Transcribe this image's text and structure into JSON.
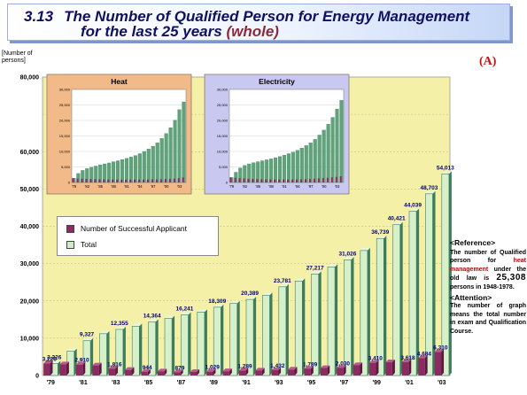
{
  "header": {
    "number": "3.13",
    "title_line1": "The Number of Qualified Person for Energy Management",
    "title_line2_prefix": "for the last 25 years",
    "title_line2_highlight": "(whole)"
  },
  "corner_label": "(A)",
  "y_unit_line1": "[Number of",
  "y_unit_line2": "persons]",
  "legend": {
    "successful": "Number of Successful Applicant",
    "total": "Total"
  },
  "colors": {
    "plot_bg": "#f4f0a8",
    "total_bar": "#5fa37a",
    "total_bar_light": "#d6f0cc",
    "successful_bar": "#8c2a62",
    "heat_inset_bg": "#f2ba88",
    "elec_inset_bg": "#c9c8f0"
  },
  "reference": {
    "head": "<Reference>",
    "text_a": "The number of Qualified person for",
    "highlight": "heat management",
    "text_b": "under the old law is",
    "big_number": "25,308",
    "text_c": "persons in 1948-1978."
  },
  "attention": {
    "head": "<Attention>",
    "text": "The number of graph means the total number in exam and Qualification Course."
  },
  "chart_data": {
    "type": "bar",
    "ylim": [
      0,
      80000
    ],
    "yticks": [
      0,
      10000,
      20000,
      30000,
      40000,
      50000,
      60000,
      70000,
      80000
    ],
    "ytick_labels": [
      "0",
      "10,000",
      "20,000",
      "30,000",
      "40,000",
      "50,000",
      "60,000",
      "",
      "80,000"
    ],
    "categories": [
      "'79",
      "'80",
      "'81",
      "'82",
      "'83",
      "'84",
      "'85",
      "'86",
      "'87",
      "'88",
      "'89",
      "'90",
      "'91",
      "'92",
      "'93",
      "'94",
      "'95",
      "'96",
      "'97",
      "'98",
      "'99",
      "'00",
      "'01",
      "'02",
      "'03"
    ],
    "x_tick_labels": [
      "'79",
      "",
      "'81",
      "",
      "'83",
      "",
      "'85",
      "",
      "'87",
      "",
      "'89",
      "",
      "'91",
      "",
      "'93",
      "",
      "'95",
      "",
      "'97",
      "",
      "'99",
      "",
      "'01",
      "",
      "'03"
    ],
    "series": [
      {
        "name": "Number of Successful Applicant",
        "values": [
          3226,
          3000,
          2910,
          2700,
          1816,
          1500,
          944,
          1100,
          879,
          950,
          1029,
          1150,
          1289,
          1350,
          1432,
          1600,
          1789,
          2000,
          2030,
          2800,
          3410,
          3550,
          3618,
          4684,
          6310
        ],
        "labels": [
          "3,226",
          "",
          "2,910",
          "",
          "1,816",
          "",
          "944",
          "",
          "879",
          "",
          "1,029",
          "",
          "1,289",
          "",
          "1,432",
          "",
          "1,789",
          "",
          "2,030",
          "",
          "3,410",
          "",
          "3,618",
          "4,684",
          "6,310"
        ]
      },
      {
        "name": "Total",
        "values": [
          3226,
          6500,
          9327,
          11200,
          12355,
          13200,
          14364,
          15300,
          16241,
          17000,
          18309,
          19300,
          20389,
          21500,
          23781,
          25300,
          27217,
          29100,
          31026,
          33500,
          36739,
          40421,
          44039,
          48703,
          54013
        ],
        "labels": [
          "3,226",
          "",
          "9,327",
          "",
          "12,355",
          "",
          "14,364",
          "",
          "16,241",
          "",
          "18,309",
          "",
          "20,389",
          "",
          "23,781",
          "",
          "27,217",
          "",
          "31,026",
          "",
          "36,739",
          "40,421",
          "44,039",
          "48,703",
          "54,013"
        ]
      }
    ],
    "insets": [
      {
        "title": "Heat",
        "ylim": [
          0,
          30000
        ],
        "yticks": [
          "30,000",
          "25,000",
          "20,000",
          "15,000",
          "10,000",
          "5,000",
          "0"
        ],
        "xlabels": [
          "'79",
          "'82",
          "'85",
          "'88",
          "'91",
          "'94",
          "'97",
          "'00",
          "'03"
        ],
        "total": [
          1400,
          2900,
          3900,
          4500,
          4900,
          5300,
          5700,
          6000,
          6300,
          6700,
          7000,
          7400,
          7800,
          8200,
          8700,
          9300,
          10000,
          10800,
          11700,
          12800,
          14200,
          15800,
          17700,
          20100,
          23500,
          26000
        ],
        "successful": [
          1300,
          1250,
          1200,
          1150,
          1100,
          1050,
          1000,
          980,
          960,
          950,
          940,
          930,
          920,
          920,
          920,
          930,
          940,
          960,
          980,
          1000,
          1050,
          1100,
          1150,
          1250,
          1400,
          1600
        ]
      },
      {
        "title": "Electricity",
        "ylim": [
          0,
          30000
        ],
        "yticks": [
          "30,000",
          "25,000",
          "20,000",
          "15,000",
          "10,000",
          "5,000",
          "0"
        ],
        "xlabels": [
          "'79",
          "'82",
          "'85",
          "'88",
          "'91",
          "'94",
          "'97",
          "'00",
          "'03"
        ],
        "total": [
          1600,
          3300,
          4700,
          5500,
          6000,
          6400,
          6700,
          7000,
          7300,
          7600,
          8000,
          8400,
          8800,
          9300,
          9800,
          10400,
          11100,
          11900,
          12800,
          13900,
          15300,
          16900,
          18800,
          21000,
          23700,
          26500
        ],
        "successful": [
          1600,
          1500,
          1400,
          1300,
          1200,
          1150,
          1100,
          1050,
          1000,
          980,
          960,
          950,
          950,
          950,
          960,
          980,
          1000,
          1050,
          1100,
          1200,
          1300,
          1400,
          1500,
          1650,
          1800,
          2000
        ]
      }
    ]
  }
}
